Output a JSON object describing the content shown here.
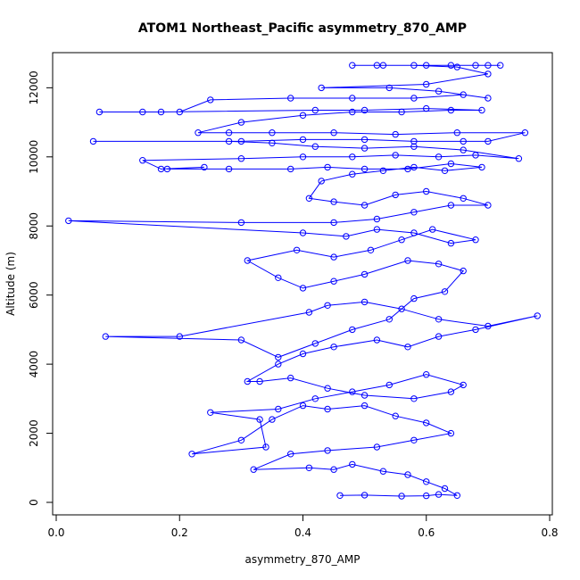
{
  "chart_data": {
    "type": "scatter",
    "title": "ATOM1 Northeast_Pacific asymmetry_870_AMP",
    "xlabel": "asymmetry_870_AMP",
    "ylabel": "Altitude (m)",
    "xlim": [
      0.0,
      0.8
    ],
    "ylim": [
      0,
      12500
    ],
    "x_ticks": [
      "0.0",
      "0.2",
      "0.4",
      "0.6",
      "0.8"
    ],
    "y_ticks": [
      "0",
      "2000",
      "4000",
      "6000",
      "8000",
      "10000",
      "12000"
    ],
    "grid": false,
    "connected": true,
    "marker": "open-circle",
    "color": "#0000ff",
    "points": [
      [
        0.46,
        200
      ],
      [
        0.5,
        210
      ],
      [
        0.56,
        180
      ],
      [
        0.6,
        190
      ],
      [
        0.62,
        230
      ],
      [
        0.65,
        200
      ],
      [
        0.63,
        400
      ],
      [
        0.6,
        600
      ],
      [
        0.57,
        800
      ],
      [
        0.53,
        900
      ],
      [
        0.48,
        1100
      ],
      [
        0.45,
        950
      ],
      [
        0.41,
        1000
      ],
      [
        0.32,
        950
      ],
      [
        0.38,
        1400
      ],
      [
        0.44,
        1500
      ],
      [
        0.52,
        1600
      ],
      [
        0.58,
        1800
      ],
      [
        0.64,
        2000
      ],
      [
        0.6,
        2300
      ],
      [
        0.55,
        2500
      ],
      [
        0.5,
        2800
      ],
      [
        0.44,
        2700
      ],
      [
        0.4,
        2800
      ],
      [
        0.35,
        2400
      ],
      [
        0.3,
        1800
      ],
      [
        0.22,
        1400
      ],
      [
        0.34,
        1600
      ],
      [
        0.33,
        2400
      ],
      [
        0.25,
        2600
      ],
      [
        0.36,
        2700
      ],
      [
        0.42,
        3000
      ],
      [
        0.48,
        3200
      ],
      [
        0.54,
        3400
      ],
      [
        0.6,
        3700
      ],
      [
        0.66,
        3400
      ],
      [
        0.64,
        3200
      ],
      [
        0.58,
        3000
      ],
      [
        0.5,
        3100
      ],
      [
        0.44,
        3300
      ],
      [
        0.38,
        3600
      ],
      [
        0.33,
        3500
      ],
      [
        0.31,
        3500
      ],
      [
        0.36,
        4000
      ],
      [
        0.4,
        4300
      ],
      [
        0.45,
        4500
      ],
      [
        0.52,
        4700
      ],
      [
        0.57,
        4500
      ],
      [
        0.62,
        4800
      ],
      [
        0.68,
        5000
      ],
      [
        0.78,
        5400
      ],
      [
        0.7,
        5100
      ],
      [
        0.62,
        5300
      ],
      [
        0.56,
        5600
      ],
      [
        0.5,
        5800
      ],
      [
        0.44,
        5700
      ],
      [
        0.41,
        5500
      ],
      [
        0.2,
        4800
      ],
      [
        0.08,
        4800
      ],
      [
        0.3,
        4700
      ],
      [
        0.36,
        4200
      ],
      [
        0.42,
        4600
      ],
      [
        0.48,
        5000
      ],
      [
        0.54,
        5300
      ],
      [
        0.58,
        5900
      ],
      [
        0.63,
        6100
      ],
      [
        0.66,
        6700
      ],
      [
        0.62,
        6900
      ],
      [
        0.57,
        7000
      ],
      [
        0.5,
        6600
      ],
      [
        0.45,
        6400
      ],
      [
        0.4,
        6200
      ],
      [
        0.36,
        6500
      ],
      [
        0.31,
        7000
      ],
      [
        0.39,
        7300
      ],
      [
        0.45,
        7100
      ],
      [
        0.51,
        7300
      ],
      [
        0.56,
        7600
      ],
      [
        0.61,
        7900
      ],
      [
        0.68,
        7600
      ],
      [
        0.64,
        7500
      ],
      [
        0.58,
        7800
      ],
      [
        0.52,
        7900
      ],
      [
        0.47,
        7700
      ],
      [
        0.4,
        7800
      ],
      [
        0.02,
        8150
      ],
      [
        0.3,
        8100
      ],
      [
        0.45,
        8100
      ],
      [
        0.52,
        8200
      ],
      [
        0.58,
        8400
      ],
      [
        0.64,
        8600
      ],
      [
        0.7,
        8600
      ],
      [
        0.66,
        8800
      ],
      [
        0.6,
        9000
      ],
      [
        0.55,
        8900
      ],
      [
        0.5,
        8600
      ],
      [
        0.45,
        8700
      ],
      [
        0.41,
        8800
      ],
      [
        0.43,
        9300
      ],
      [
        0.48,
        9500
      ],
      [
        0.53,
        9600
      ],
      [
        0.58,
        9700
      ],
      [
        0.63,
        9600
      ],
      [
        0.69,
        9700
      ],
      [
        0.64,
        9800
      ],
      [
        0.57,
        9650
      ],
      [
        0.5,
        9650
      ],
      [
        0.44,
        9700
      ],
      [
        0.38,
        9650
      ],
      [
        0.28,
        9650
      ],
      [
        0.18,
        9650
      ],
      [
        0.24,
        9700
      ],
      [
        0.17,
        9650
      ],
      [
        0.14,
        9900
      ],
      [
        0.3,
        9950
      ],
      [
        0.4,
        10000
      ],
      [
        0.48,
        10000
      ],
      [
        0.55,
        10050
      ],
      [
        0.62,
        10000
      ],
      [
        0.68,
        10050
      ],
      [
        0.75,
        9950
      ],
      [
        0.66,
        10200
      ],
      [
        0.58,
        10300
      ],
      [
        0.5,
        10250
      ],
      [
        0.42,
        10300
      ],
      [
        0.35,
        10400
      ],
      [
        0.28,
        10450
      ],
      [
        0.06,
        10450
      ],
      [
        0.3,
        10450
      ],
      [
        0.4,
        10500
      ],
      [
        0.5,
        10500
      ],
      [
        0.58,
        10450
      ],
      [
        0.66,
        10450
      ],
      [
        0.7,
        10450
      ],
      [
        0.76,
        10700
      ],
      [
        0.65,
        10700
      ],
      [
        0.55,
        10650
      ],
      [
        0.45,
        10700
      ],
      [
        0.35,
        10700
      ],
      [
        0.28,
        10700
      ],
      [
        0.23,
        10700
      ],
      [
        0.3,
        11000
      ],
      [
        0.4,
        11200
      ],
      [
        0.48,
        11300
      ],
      [
        0.56,
        11300
      ],
      [
        0.64,
        11350
      ],
      [
        0.69,
        11350
      ],
      [
        0.6,
        11400
      ],
      [
        0.5,
        11350
      ],
      [
        0.42,
        11350
      ],
      [
        0.17,
        11300
      ],
      [
        0.14,
        11300
      ],
      [
        0.07,
        11300
      ],
      [
        0.2,
        11300
      ],
      [
        0.25,
        11650
      ],
      [
        0.38,
        11700
      ],
      [
        0.48,
        11700
      ],
      [
        0.58,
        11700
      ],
      [
        0.66,
        11800
      ],
      [
        0.7,
        11700
      ],
      [
        0.62,
        11900
      ],
      [
        0.54,
        12000
      ],
      [
        0.43,
        12000
      ],
      [
        0.6,
        12100
      ],
      [
        0.7,
        12400
      ],
      [
        0.65,
        12600
      ],
      [
        0.58,
        12650
      ],
      [
        0.52,
        12650
      ],
      [
        0.48,
        12650
      ],
      [
        0.53,
        12650
      ],
      [
        0.6,
        12650
      ],
      [
        0.64,
        12650
      ],
      [
        0.68,
        12650
      ],
      [
        0.7,
        12650
      ],
      [
        0.72,
        12650
      ]
    ]
  }
}
